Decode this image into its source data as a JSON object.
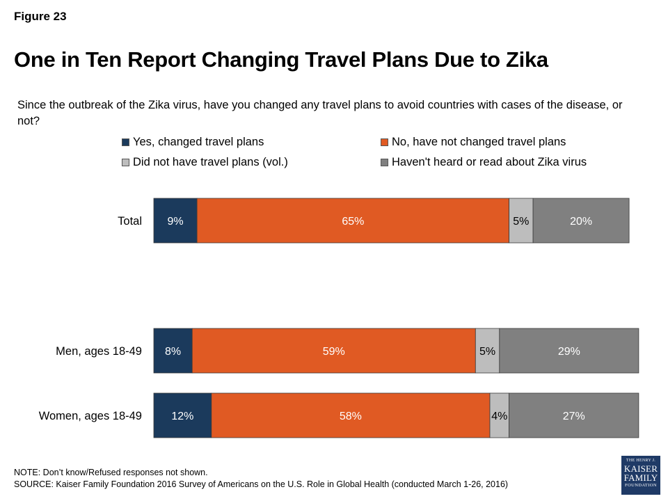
{
  "figure_label": "Figure 23",
  "title": "One in Ten Report Changing Travel Plans Due to Zika",
  "question": "Since the outbreak of the Zika virus, have you changed any travel plans to avoid countries with cases of the disease, or not?",
  "colors": {
    "yes": "#1b3a5c",
    "no": "#e05a23",
    "no_plans": "#bdbdbd",
    "not_heard": "#808080"
  },
  "chart_data": {
    "type": "bar",
    "orientation": "horizontal",
    "stacked": true,
    "categories": [
      "Total",
      "Men, ages 18-49",
      "Women, ages 18-49"
    ],
    "series": [
      {
        "name": "Yes, changed travel plans",
        "values": [
          9,
          8,
          12
        ],
        "color": "#1b3a5c"
      },
      {
        "name": "No, have not changed travel plans",
        "values": [
          65,
          59,
          58
        ],
        "color": "#e05a23"
      },
      {
        "name": "Did not have travel plans (vol.)",
        "values": [
          5,
          5,
          4
        ],
        "color": "#bdbdbd"
      },
      {
        "name": "Haven't heard or read about Zika virus",
        "values": [
          20,
          29,
          27
        ],
        "color": "#808080"
      }
    ],
    "value_suffix": "%",
    "xlim": [
      0,
      100
    ],
    "legend_position": "top"
  },
  "footer": {
    "note": "NOTE: Don’t know/Refused responses not shown.",
    "source": "SOURCE: Kaiser Family Foundation 2016 Survey of Americans on the U.S. Role in Global Health (conducted March 1-26, 2016)"
  },
  "logo": {
    "line1": "THE HENRY J.",
    "line2": "KAISER",
    "line3": "FAMILY",
    "line4": "FOUNDATION"
  }
}
